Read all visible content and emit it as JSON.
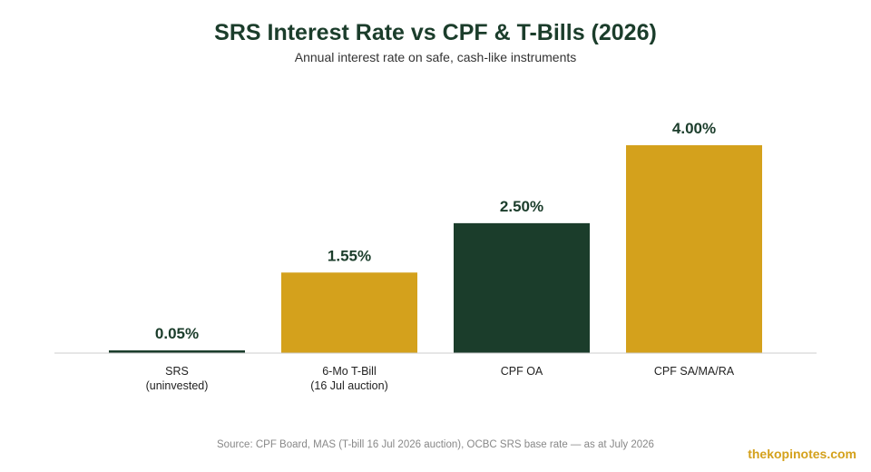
{
  "chart_data": {
    "type": "bar",
    "title": "SRS Interest Rate vs CPF & T-Bills (2026)",
    "subtitle": "Annual interest rate on safe, cash-like instruments",
    "categories": [
      [
        "SRS",
        "(uninvested)"
      ],
      [
        "6-Mo T-Bill",
        "(16 Jul auction)"
      ],
      [
        "CPF OA"
      ],
      [
        "CPF SA/MA/RA"
      ]
    ],
    "values": [
      0.05,
      1.55,
      2.5,
      4.0
    ],
    "value_labels": [
      "0.05%",
      "1.55%",
      "2.50%",
      "4.00%"
    ],
    "bar_colors": [
      "#1b3d2b",
      "#d4a11c",
      "#1b3d2b",
      "#d4a11c"
    ],
    "ylim": [
      0,
      4.0
    ],
    "xlabel": "",
    "ylabel": "",
    "grid": false,
    "legend": "none"
  },
  "source": "Source: CPF Board, MAS (T-bill 16 Jul 2026 auction), OCBC SRS base rate — as at July 2026",
  "brand": "thekopinotes.com",
  "colors": {
    "dark_green": "#1b3d2b",
    "gold": "#d4a11c",
    "axis": "#cccccc"
  }
}
